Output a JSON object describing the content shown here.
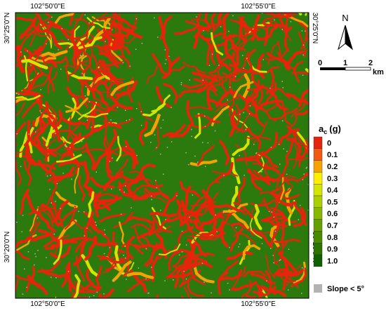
{
  "map": {
    "lon_labels": [
      "102°50'0\"E",
      "102°55'0\"E"
    ],
    "lat_labels": [
      "30°25'0\"N",
      "30°20'0\"N"
    ]
  },
  "north_arrow": "N",
  "scale_bar": {
    "ticks": [
      "0",
      "1",
      "2"
    ],
    "unit": "km"
  },
  "legend": {
    "title_main": "a",
    "title_sub": "c",
    "title_unit": "(g)",
    "items": [
      {
        "label": "0",
        "color": "#e8230c"
      },
      {
        "label": "0.1",
        "color": "#f25a14"
      },
      {
        "label": "0.2",
        "color": "#f5a300"
      },
      {
        "label": "0.3",
        "color": "#ffee00"
      },
      {
        "label": "0.4",
        "color": "#d4e600"
      },
      {
        "label": "0.5",
        "color": "#aad000"
      },
      {
        "label": "0.6",
        "color": "#88b800"
      },
      {
        "label": "0.7",
        "color": "#66a000"
      },
      {
        "label": "0.8",
        "color": "#4a8a00"
      },
      {
        "label": "0.9",
        "color": "#2a7400"
      },
      {
        "label": "1.0",
        "color": "#0f6000"
      }
    ],
    "slope_label": "Slope < 5°",
    "slope_color": "#b3b3b3"
  }
}
